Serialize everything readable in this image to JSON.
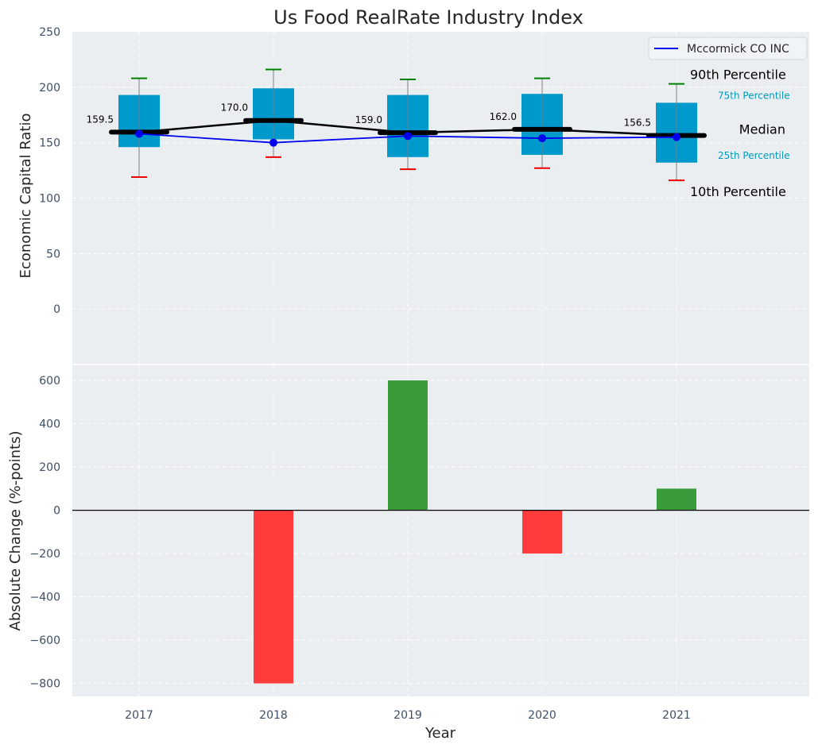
{
  "chart_data": [
    {
      "type": "box",
      "title": "Us Food RealRate Industry Index",
      "xlabel": "",
      "ylabel": "Economic Capital Ratio",
      "categories": [
        "2017",
        "2018",
        "2019",
        "2020",
        "2021"
      ],
      "ylim": [
        -50,
        250
      ],
      "yticks": [
        0,
        50,
        100,
        150,
        200,
        250
      ],
      "grid": true,
      "boxes": [
        {
          "year": "2017",
          "p10": 119,
          "p25": 146,
          "median": 159.5,
          "p75": 193,
          "p90": 208
        },
        {
          "year": "2018",
          "p10": 137,
          "p25": 153,
          "median": 170.0,
          "p75": 199,
          "p90": 216
        },
        {
          "year": "2019",
          "p10": 126,
          "p25": 137,
          "median": 159.0,
          "p75": 193,
          "p90": 207
        },
        {
          "year": "2020",
          "p10": 127,
          "p25": 139,
          "median": 162.0,
          "p75": 194,
          "p90": 208
        },
        {
          "year": "2021",
          "p10": 116,
          "p25": 132,
          "median": 156.5,
          "p75": 186,
          "p90": 203
        }
      ],
      "median_labels": [
        "159.5",
        "170.0",
        "159.0",
        "162.0",
        "156.5"
      ],
      "series": [
        {
          "name": "Mccormick CO INC",
          "values": [
            158,
            150,
            156,
            154,
            155
          ],
          "color": "#0000ee"
        }
      ],
      "legend": {
        "position": "top-right",
        "entries": [
          "Mccormick CO INC"
        ]
      },
      "annotations": {
        "p90": "90th Percentile",
        "p75": "75th Percentile",
        "median": "Median",
        "p25": "25th Percentile",
        "p10": "10th Percentile"
      },
      "colors": {
        "box": "#0099cc",
        "median_line": "#000000",
        "whisker_top": "#008000",
        "whisker_bottom": "#ee0000",
        "annotation_quartile": "#0099bb",
        "background": "#eaeef0"
      }
    },
    {
      "type": "bar",
      "xlabel": "Year",
      "ylabel": "Absolute Change (%-points)",
      "categories": [
        "2017",
        "2018",
        "2019",
        "2020",
        "2021"
      ],
      "values": [
        0,
        -800,
        600,
        -200,
        100
      ],
      "ylim": [
        -860,
        670
      ],
      "yticks": [
        -800,
        -600,
        -400,
        -200,
        0,
        200,
        400,
        600
      ],
      "ytick_labels": [
        "−800",
        "−600",
        "−400",
        "−200",
        "0",
        "200",
        "400",
        "600"
      ],
      "grid": true,
      "colors": {
        "positive": "#3a9b3a",
        "negative": "#ff3b3b",
        "zero_line": "#000000",
        "background": "#eaeef0"
      }
    }
  ]
}
